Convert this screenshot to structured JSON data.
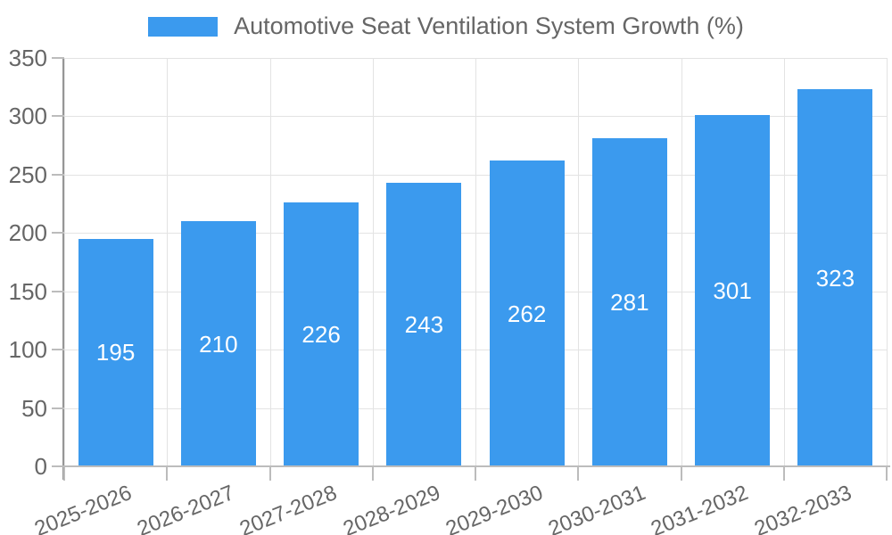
{
  "chart_data": {
    "type": "bar",
    "title": "Automotive Seat Ventilation System Growth (%)",
    "legend_position": "top",
    "categories": [
      "2025-2026",
      "2026-2027",
      "2027-2028",
      "2028-2029",
      "2029-2030",
      "2030-2031",
      "2031-2032",
      "2032-2033"
    ],
    "values": [
      195,
      210,
      226,
      243,
      262,
      281,
      301,
      323
    ],
    "xlabel": "",
    "ylabel": "",
    "ylim": [
      0,
      350
    ],
    "ytick_step": 50,
    "grid": true,
    "bar_color": "#3b9aee",
    "bar_label_color": "#ffffff",
    "axis_text_color": "#666666",
    "gridline_color": "#e3e3e3"
  }
}
